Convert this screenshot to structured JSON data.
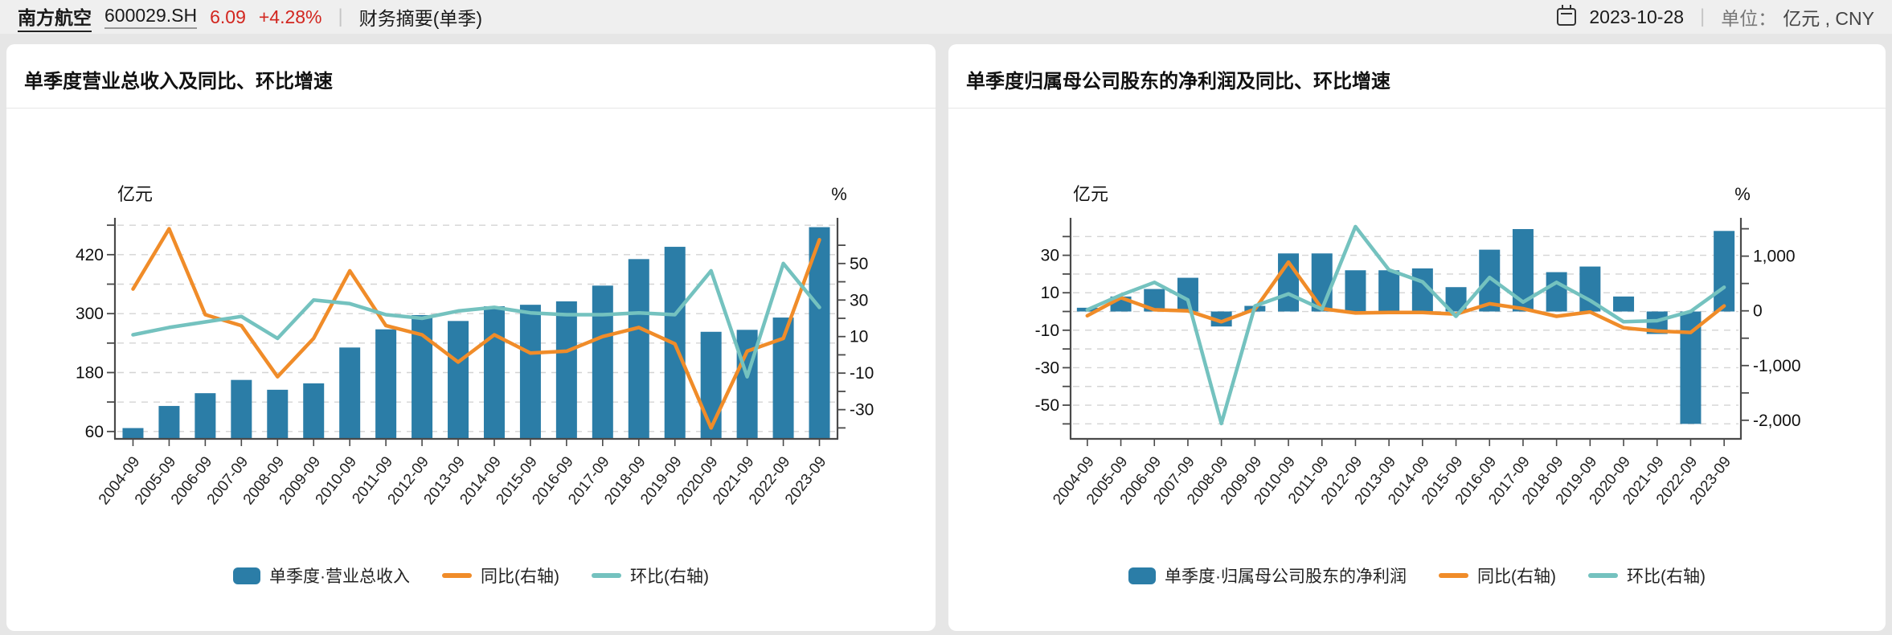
{
  "header": {
    "stock_name": "南方航空",
    "stock_code": "600029.SH",
    "price": "6.09",
    "change": "+4.28%",
    "report_label": "财务摘要(单季)",
    "date": "2023-10-28",
    "unit_label": "单位：",
    "unit_value": "亿元 , CNY"
  },
  "colors": {
    "bar": "#2b7da7",
    "yoy_line": "#f08c29",
    "qoq_line": "#74c2bf",
    "up_red": "#d2261f",
    "grid": "#d4d4d4",
    "axis": "#4a4a4a"
  },
  "chart_data": [
    {
      "type": "bar",
      "title": "单季度营业总收入及同比、环比增速",
      "grid": "dashed horizontal",
      "legend_position": "bottom-center",
      "categories": [
        "2004-09",
        "2005-09",
        "2006-09",
        "2007-09",
        "2008-09",
        "2009-09",
        "2010-09",
        "2011-09",
        "2012-09",
        "2013-09",
        "2014-09",
        "2015-09",
        "2016-09",
        "2017-09",
        "2018-09",
        "2019-09",
        "2020-09",
        "2021-09",
        "2022-09",
        "2023-09"
      ],
      "series": [
        {
          "name": "单季度·营业总收入",
          "type": "bar",
          "axis": "left",
          "values": [
            67,
            112,
            138,
            165,
            145,
            158,
            231,
            268,
            297,
            285,
            315,
            318,
            325,
            357,
            411,
            436,
            263,
            267,
            292,
            476
          ]
        },
        {
          "name": "同比(右轴)",
          "type": "line",
          "axis": "right",
          "values": [
            36,
            69,
            22,
            16,
            -12,
            9,
            46,
            16,
            11,
            -4,
            11,
            1,
            2,
            10,
            15,
            6,
            -40,
            2,
            9,
            63
          ]
        },
        {
          "name": "环比(右轴)",
          "type": "line",
          "axis": "right",
          "values": [
            11,
            15,
            18,
            21,
            9,
            30,
            28,
            22,
            20,
            24,
            26,
            23,
            22,
            22,
            23,
            22,
            46,
            -12,
            50,
            26
          ]
        }
      ],
      "left_axis": {
        "name": "亿元",
        "min": 45,
        "max": 495,
        "grid_values": [
          60,
          120,
          180,
          240,
          300,
          360,
          420,
          480
        ],
        "tick_values": [
          60,
          120,
          180,
          240,
          300,
          360,
          420,
          480
        ],
        "label_values": [
          60,
          180,
          300,
          420
        ],
        "label_texts": [
          "60",
          "180",
          "300",
          "420"
        ]
      },
      "right_axis": {
        "name": "%",
        "min": -46,
        "max": 75,
        "tick_values": [
          -40,
          -30,
          -20,
          -10,
          0,
          10,
          20,
          30,
          40,
          50,
          60
        ],
        "label_values": [
          -30,
          -10,
          10,
          30,
          50
        ],
        "label_texts": [
          "-30",
          "-10",
          "10",
          "30",
          "50"
        ]
      }
    },
    {
      "type": "bar",
      "title": "单季度归属母公司股东的净利润及同比、环比增速",
      "grid": "dashed horizontal",
      "legend_position": "bottom-center",
      "categories": [
        "2004-09",
        "2005-09",
        "2006-09",
        "2007-09",
        "2008-09",
        "2009-09",
        "2010-09",
        "2011-09",
        "2012-09",
        "2013-09",
        "2014-09",
        "2015-09",
        "2016-09",
        "2017-09",
        "2018-09",
        "2019-09",
        "2020-09",
        "2021-09",
        "2022-09",
        "2023-09"
      ],
      "series": [
        {
          "name": "单季度·归属母公司股东的净利润",
          "type": "bar",
          "axis": "left",
          "values": [
            2,
            8,
            12,
            18,
            -8,
            3,
            31,
            31,
            22,
            22,
            23,
            13,
            33,
            44,
            21,
            24,
            8,
            -12,
            -60,
            43
          ]
        },
        {
          "name": "同比(右轴)",
          "type": "line",
          "axis": "right",
          "values": [
            -90,
            240,
            20,
            0,
            -200,
            30,
            890,
            40,
            -40,
            -30,
            -30,
            -60,
            130,
            40,
            -100,
            -20,
            -310,
            -370,
            -395,
            90
          ]
        },
        {
          "name": "环比(右轴)",
          "type": "line",
          "axis": "right",
          "values": [
            20,
            290,
            520,
            200,
            -2060,
            90,
            310,
            30,
            1540,
            750,
            530,
            -100,
            610,
            160,
            520,
            190,
            -200,
            -180,
            -10,
            430
          ]
        }
      ],
      "left_axis": {
        "name": "亿元",
        "min": -68,
        "max": 50,
        "grid_values": [
          -60,
          -50,
          -40,
          -30,
          -20,
          -10,
          0,
          10,
          20,
          30,
          40
        ],
        "tick_values": [
          -60,
          -50,
          -40,
          -30,
          -20,
          -10,
          0,
          10,
          20,
          30,
          40
        ],
        "label_values": [
          -50,
          -30,
          -10,
          10,
          30
        ],
        "label_texts": [
          "-50",
          "-30",
          "-10",
          "10",
          "30"
        ]
      },
      "right_axis": {
        "name": "%",
        "min": -2340,
        "max": 1700,
        "tick_values": [
          -2000,
          -1500,
          -1000,
          -500,
          0,
          500,
          1000,
          1500
        ],
        "label_values": [
          -2000,
          -1000,
          0,
          1000
        ],
        "label_texts": [
          "-2,000",
          "-1,000",
          "0",
          "1,000"
        ]
      }
    }
  ]
}
